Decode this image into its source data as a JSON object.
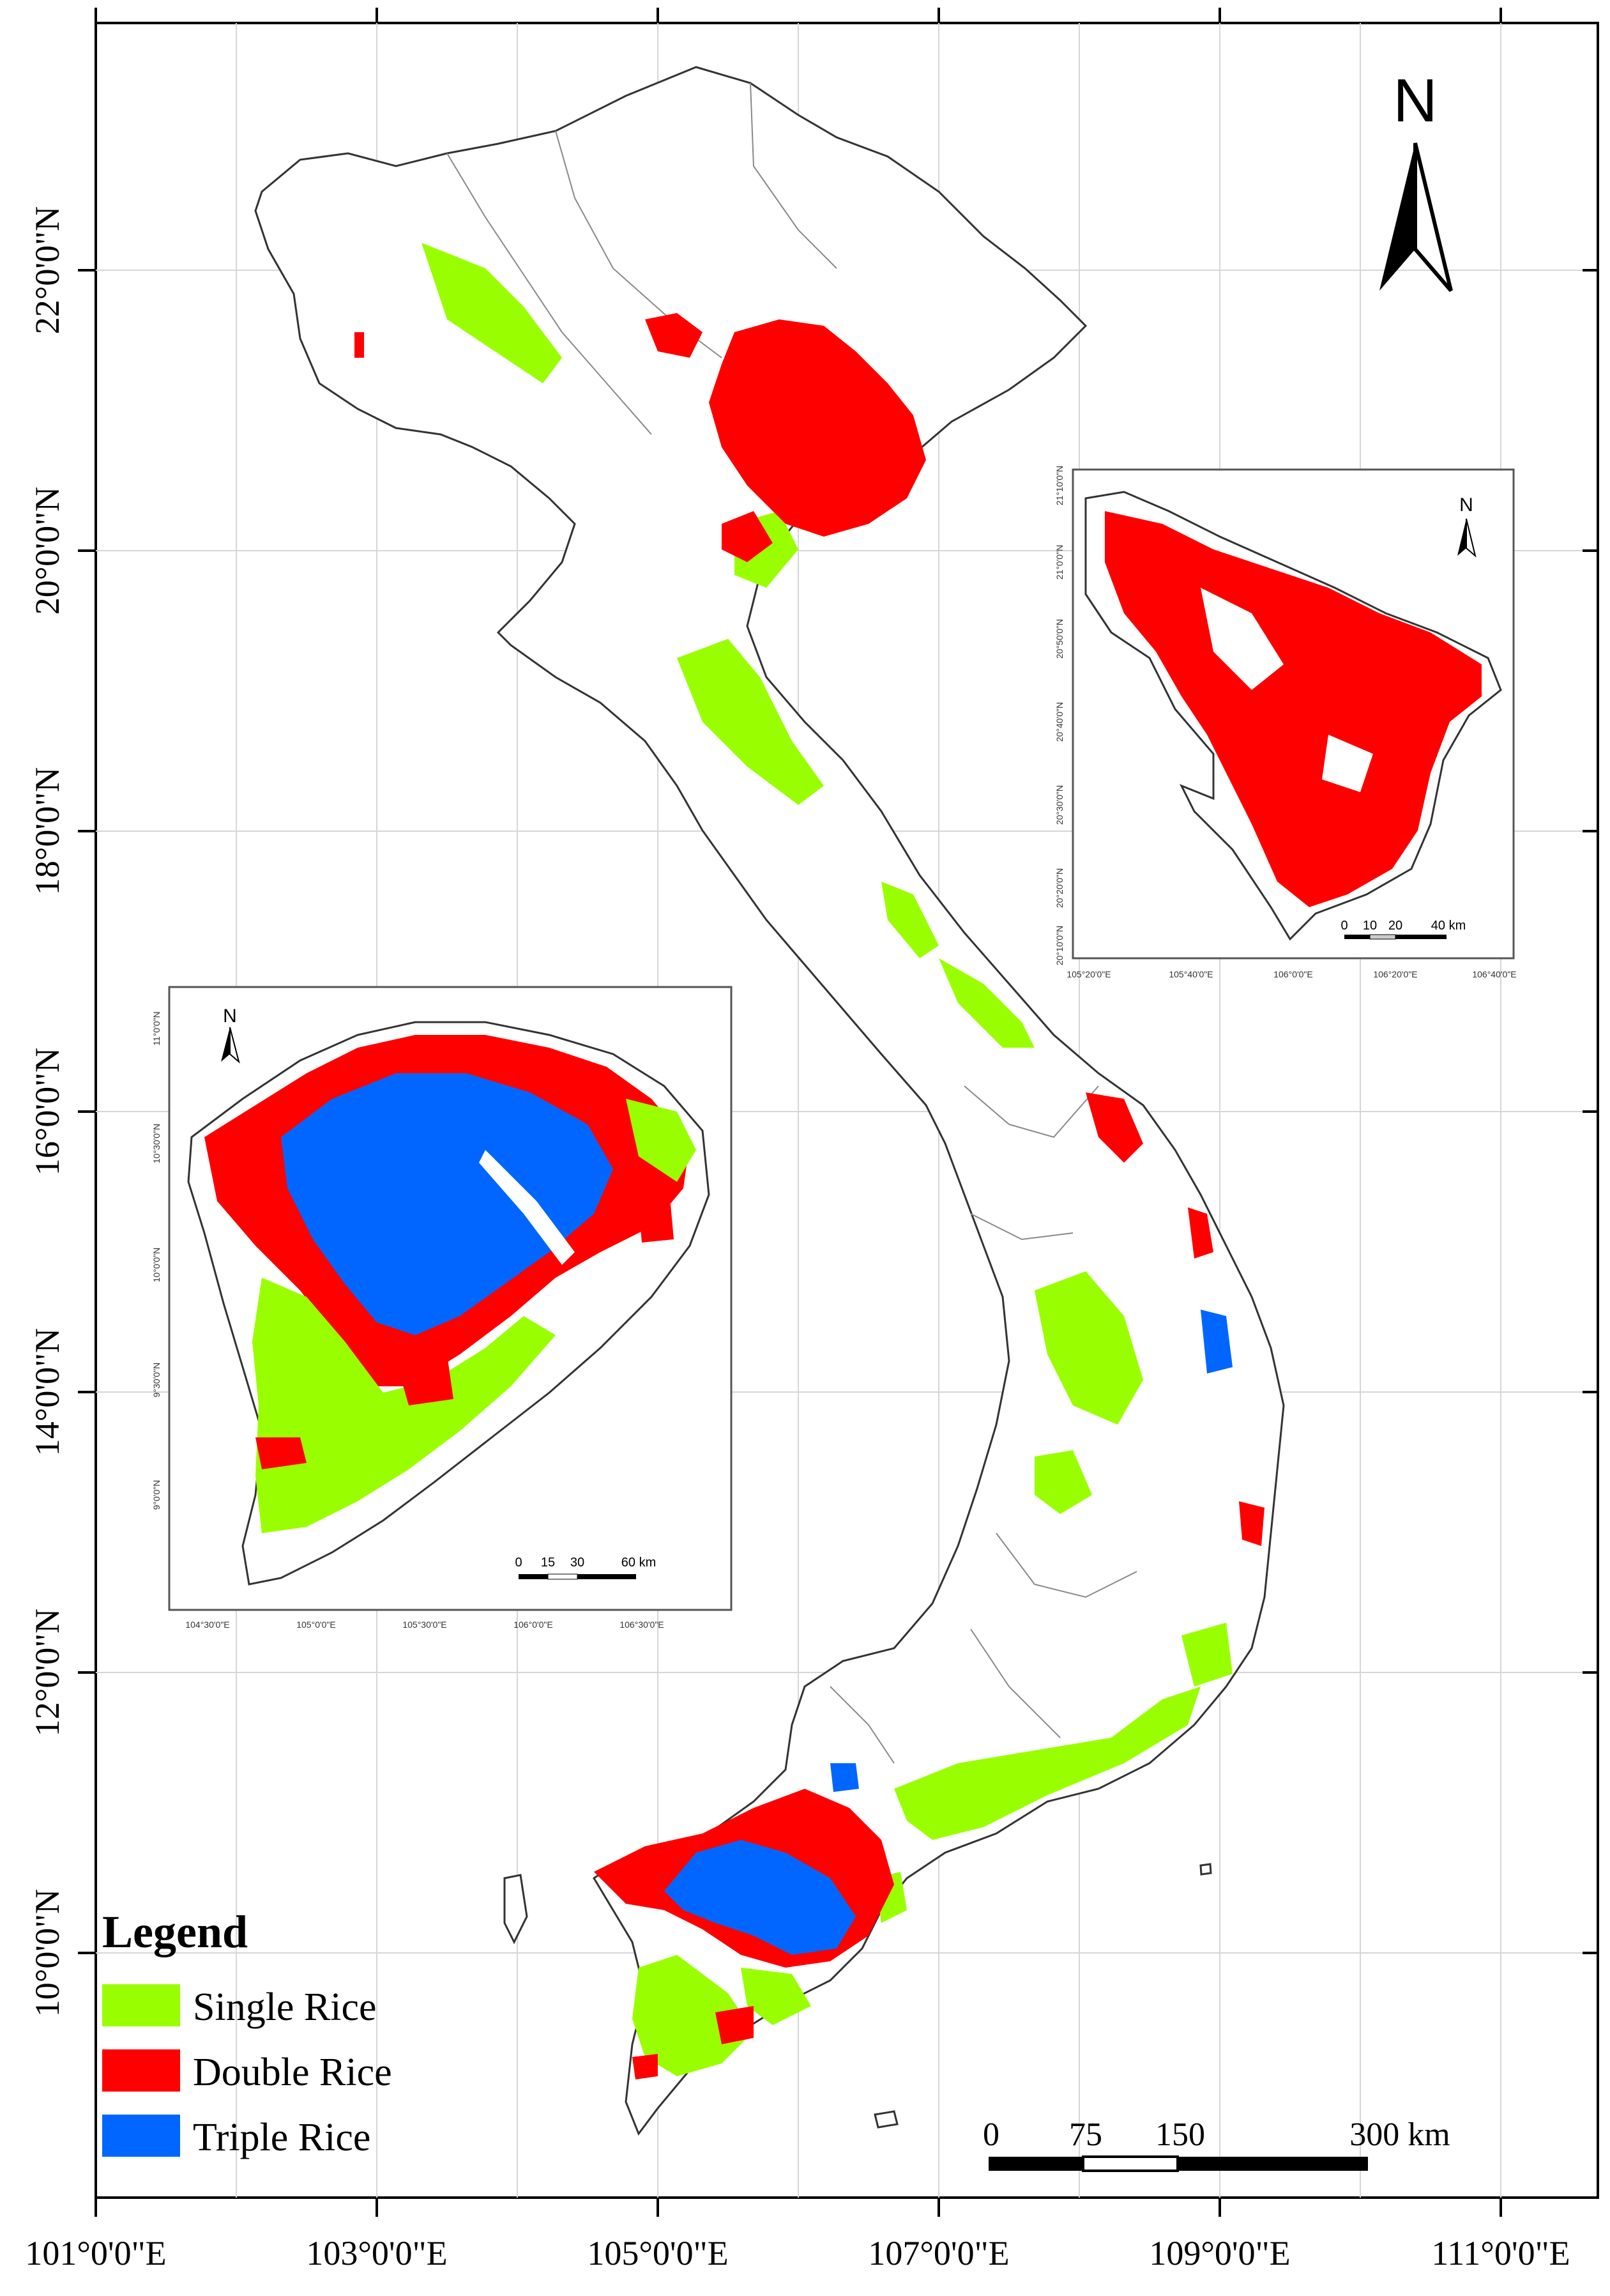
{
  "axes": {
    "x_labels": [
      "101°0'0\"E",
      "103°0'0\"E",
      "105°0'0\"E",
      "107°0'0\"E",
      "109°0'0\"E",
      "111°0'0\"E"
    ],
    "y_labels": [
      "22°0'0\"N",
      "20°0'0\"N",
      "18°0'0\"N",
      "16°0'0\"N",
      "14°0'0\"N",
      "12°0'0\"N",
      "10°0'0\"N"
    ]
  },
  "north_arrow": {
    "label": "N",
    "icon": "north-arrow-icon"
  },
  "legend": {
    "title": "Legend",
    "items": [
      {
        "label": "Single Rice",
        "color": "#99ff00"
      },
      {
        "label": "Double Rice",
        "color": "#ff0000"
      },
      {
        "label": "Triple Rice",
        "color": "#0066ff"
      }
    ]
  },
  "scale_bar": {
    "labels": [
      "0",
      "75",
      "150",
      "300 km"
    ]
  },
  "inset_north": {
    "north_label": "N",
    "x_labels": [
      "105°20'0\"E",
      "105°40'0\"E",
      "106°0'0\"E",
      "106°20'0\"E",
      "106°40'0\"E"
    ],
    "y_labels": [
      "21°10'0\"N",
      "21°0'0\"N",
      "20°50'0\"N",
      "20°40'0\"N",
      "20°30'0\"N",
      "20°20'0\"N",
      "20°10'0\"N"
    ],
    "scale_labels": [
      "0",
      "10",
      "20",
      "40 km"
    ]
  },
  "inset_south": {
    "north_label": "N",
    "x_labels": [
      "104°30'0\"E",
      "105°0'0\"E",
      "105°30'0\"E",
      "106°0'0\"E",
      "106°30'0\"E"
    ],
    "y_labels": [
      "11°0'0\"N",
      "10°30'0\"N",
      "10°0'0\"N",
      "9°30'0\"N",
      "9°0'0\"N"
    ],
    "scale_labels": [
      "0",
      "15",
      "30",
      "60 km"
    ]
  },
  "colors": {
    "single": "#99ff00",
    "double": "#ff0000",
    "triple": "#0066ff",
    "frame": "#000000"
  }
}
